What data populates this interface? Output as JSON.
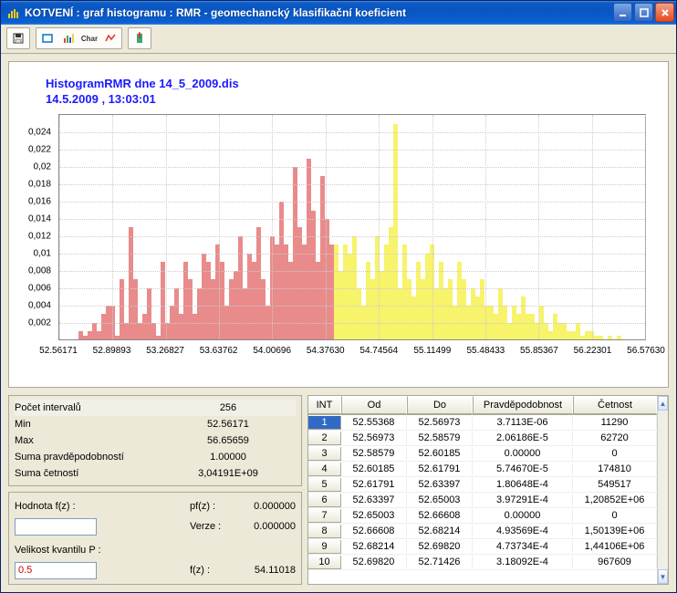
{
  "window": {
    "title": "KOTVENÍ :   graf histogramu : RMR - geomechancký klasifikační koeficient"
  },
  "chart": {
    "title_line1": "HistogramRMR dne 14_5_2009.dis",
    "title_line2": "14.5.2009 , 13:03:01",
    "y_ticks": [
      "0,002",
      "0,004",
      "0,006",
      "0,008",
      "0,01",
      "0,012",
      "0,014",
      "0,016",
      "0,018",
      "0,02",
      "0,022",
      "0,024"
    ],
    "x_ticks": [
      "52.56171",
      "52.89893",
      "53.26827",
      "53.63762",
      "54.00696",
      "54.37630",
      "54.74564",
      "55.11499",
      "55.48433",
      "55.85367",
      "56.22301",
      "56.57630"
    ],
    "y_max": 0.026,
    "color_red": "#e98b8b",
    "color_yellow": "#f7f36b",
    "split_index": 60,
    "bar_count": 128,
    "heights": [
      0,
      0,
      0,
      0,
      0.001,
      0.0005,
      0.001,
      0.002,
      0.001,
      0.003,
      0.004,
      0.004,
      0.0005,
      0.007,
      0.002,
      0.013,
      0.007,
      0.002,
      0.003,
      0.006,
      0.002,
      0.0005,
      0.009,
      0.002,
      0.004,
      0.006,
      0.003,
      0.009,
      0.007,
      0.003,
      0.006,
      0.01,
      0.009,
      0.007,
      0.011,
      0.009,
      0.004,
      0.007,
      0.008,
      0.012,
      0.006,
      0.01,
      0.009,
      0.013,
      0.007,
      0.004,
      0.012,
      0.011,
      0.016,
      0.011,
      0.009,
      0.02,
      0.013,
      0.011,
      0.021,
      0.015,
      0.009,
      0.019,
      0.014,
      0.011,
      0.011,
      0.008,
      0.011,
      0.01,
      0.012,
      0.006,
      0.004,
      0.009,
      0.007,
      0.012,
      0.008,
      0.011,
      0.013,
      0.025,
      0.006,
      0.011,
      0.007,
      0.005,
      0.009,
      0.007,
      0.01,
      0.011,
      0.006,
      0.009,
      0.006,
      0.007,
      0.004,
      0.009,
      0.007,
      0.004,
      0.006,
      0.005,
      0.007,
      0.004,
      0.004,
      0.003,
      0.006,
      0.004,
      0.002,
      0.004,
      0.003,
      0.005,
      0.003,
      0.003,
      0.002,
      0.004,
      0.002,
      0.001,
      0.003,
      0.002,
      0.002,
      0.001,
      0.001,
      0.002,
      0.0005,
      0.001,
      0.001,
      0.0005,
      0.0005,
      0,
      0.0005,
      0,
      0.0005,
      0,
      0,
      0,
      0,
      0
    ]
  },
  "stats": {
    "rows": [
      {
        "label": "Počet intervalů",
        "value": "256"
      },
      {
        "label": "Min",
        "value": "52.56171"
      },
      {
        "label": "Max",
        "value": "56.65659"
      },
      {
        "label": "Suma pravděpodobností",
        "value": "1.00000"
      },
      {
        "label": "Suma četností",
        "value": "3,04191E+09"
      }
    ]
  },
  "form": {
    "hodnota_label": "Hodnota f(z) :",
    "hodnota_value": "",
    "pfz_label": "pf(z) :",
    "pfz_value": "0.000000",
    "verze_label": "Verze :",
    "verze_value": "0.000000",
    "velikost_label": "Velikost kvantilu P :",
    "velikost_value": "0.5",
    "fz_label": "f(z) :",
    "fz_value": "54.11018"
  },
  "table": {
    "headers": [
      "INT",
      "Od",
      "Do",
      "Pravděpodobnost",
      "Četnost"
    ],
    "rows": [
      [
        "1",
        "52.55368",
        "52.56973",
        "3.7113E-06",
        "11290"
      ],
      [
        "2",
        "52.56973",
        "52.58579",
        "2.06186E-5",
        "62720"
      ],
      [
        "3",
        "52.58579",
        "52.60185",
        "0.00000",
        "0"
      ],
      [
        "4",
        "52.60185",
        "52.61791",
        "5.74670E-5",
        "174810"
      ],
      [
        "5",
        "52.61791",
        "52.63397",
        "1.80648E-4",
        "549517"
      ],
      [
        "6",
        "52.63397",
        "52.65003",
        "3.97291E-4",
        "1,20852E+06"
      ],
      [
        "7",
        "52.65003",
        "52.66608",
        "0.00000",
        "0"
      ],
      [
        "8",
        "52.66608",
        "52.68214",
        "4.93569E-4",
        "1,50139E+06"
      ],
      [
        "9",
        "52.68214",
        "52.69820",
        "4.73734E-4",
        "1,44106E+06"
      ],
      [
        "10",
        "52.69820",
        "52.71426",
        "3.18092E-4",
        "967609"
      ]
    ]
  }
}
